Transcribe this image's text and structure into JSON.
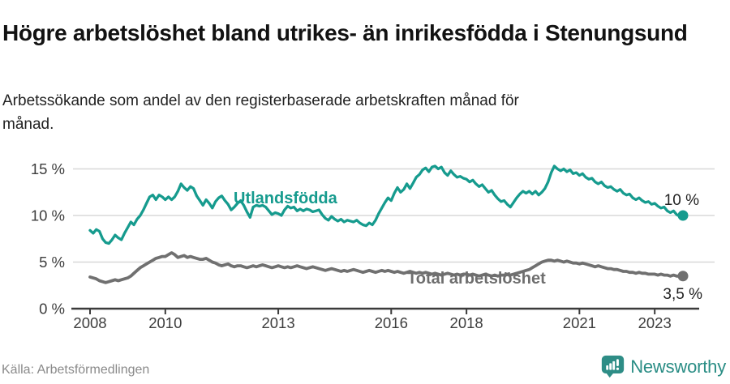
{
  "header": {
    "title": "Högre arbetslöshet bland utrikes- än inrikesfödda i Stenungsund",
    "subtitle": "Arbetssökande som andel av den registerbaserade arbetskraften månad för månad."
  },
  "footer": {
    "source": "Källa: Arbetsförmedlingen",
    "brand": "Newsworthy"
  },
  "colors": {
    "accent_teal": "#169B8E",
    "line_gray": "#707070",
    "label_gray": "#6E6E6E",
    "end_label_text": "#222222",
    "grid": "#D8D8D8",
    "axis": "#3B3B3B",
    "tick_text": "#3D3D3D",
    "source_text": "#8A8A8A",
    "logo_teal": "#2E8D86"
  },
  "icons": {
    "logo": "newsworthy-speech-bubble-bar-chart-icon"
  },
  "chart_data": {
    "type": "line",
    "title": "Högre arbetslöshet bland utrikes- än inrikesfödda i Stenungsund",
    "subtitle": "Arbetssökande som andel av den registerbaserade arbetskraften månad för månad.",
    "frequency": "monthly",
    "x_start": "2008-01",
    "x_end": "2023-10",
    "xlabel": "",
    "ylabel": "",
    "ylim": [
      0,
      16.5
    ],
    "grid": "horizontal",
    "legend_position": "inline-labels",
    "x_tick_years": [
      2008,
      2010,
      2013,
      2016,
      2018,
      2021,
      2023
    ],
    "x_tick_labels": [
      "2008",
      "2010",
      "2013",
      "2016",
      "2018",
      "2021",
      "2023"
    ],
    "y_tick_values": [
      0,
      5,
      10,
      15
    ],
    "y_tick_labels": [
      "0 %",
      "5 %",
      "10 %",
      "15 %"
    ],
    "series": [
      {
        "name": "Utlandsfödda",
        "color": "#169B8E",
        "end_label": "10 %",
        "end_value": 10.0,
        "values": [
          8.4,
          8.1,
          8.5,
          8.3,
          7.5,
          7.1,
          7.0,
          7.4,
          7.9,
          7.6,
          7.4,
          8.1,
          8.7,
          9.3,
          9.0,
          9.6,
          10.0,
          10.6,
          11.3,
          12.0,
          12.2,
          11.7,
          12.2,
          12.0,
          11.7,
          12.0,
          11.7,
          12.0,
          12.6,
          13.4,
          13.0,
          12.7,
          13.1,
          12.9,
          12.1,
          11.6,
          11.1,
          11.7,
          11.3,
          10.8,
          11.5,
          11.9,
          12.1,
          11.6,
          11.2,
          10.6,
          10.9,
          11.3,
          11.6,
          11.1,
          10.4,
          9.8,
          10.9,
          11.1,
          11.0,
          11.1,
          10.9,
          10.5,
          10.1,
          10.3,
          10.2,
          10.0,
          10.6,
          11.0,
          10.8,
          10.9,
          10.5,
          10.7,
          10.5,
          10.7,
          10.6,
          10.4,
          10.5,
          10.6,
          10.1,
          9.7,
          9.5,
          9.9,
          9.6,
          9.4,
          9.6,
          9.3,
          9.5,
          9.4,
          9.3,
          9.5,
          9.2,
          9.0,
          8.9,
          9.2,
          9.0,
          9.5,
          10.2,
          10.8,
          11.4,
          11.9,
          11.6,
          12.4,
          13.0,
          12.5,
          12.8,
          13.4,
          12.9,
          13.5,
          14.1,
          14.4,
          14.9,
          15.1,
          14.7,
          15.2,
          15.3,
          15.0,
          15.2,
          14.6,
          14.3,
          14.8,
          14.4,
          14.1,
          14.2,
          14.0,
          13.9,
          13.6,
          13.8,
          13.4,
          13.1,
          13.3,
          12.9,
          12.5,
          12.7,
          12.2,
          11.8,
          11.5,
          11.6,
          11.2,
          10.9,
          11.4,
          11.9,
          12.3,
          12.6,
          12.4,
          12.6,
          12.3,
          12.6,
          12.2,
          12.5,
          12.9,
          13.6,
          14.6,
          15.3,
          15.0,
          14.8,
          15.0,
          14.7,
          14.9,
          14.5,
          14.6,
          14.3,
          14.5,
          14.1,
          13.9,
          14.0,
          13.6,
          13.4,
          13.6,
          13.2,
          13.0,
          13.1,
          12.8,
          12.6,
          12.8,
          12.4,
          12.2,
          12.3,
          11.9,
          11.7,
          11.9,
          11.6,
          11.4,
          11.5,
          11.2,
          11.3,
          11.0,
          10.8,
          10.9,
          10.5,
          10.3,
          10.5,
          10.1,
          9.9,
          10.0
        ]
      },
      {
        "name": "Total arbetslöshet",
        "color": "#707070",
        "end_label": "3,5 %",
        "end_value": 3.5,
        "values": [
          3.4,
          3.3,
          3.2,
          3.0,
          2.9,
          2.8,
          2.9,
          3.0,
          3.1,
          3.0,
          3.1,
          3.2,
          3.3,
          3.5,
          3.8,
          4.1,
          4.4,
          4.6,
          4.8,
          5.0,
          5.2,
          5.4,
          5.5,
          5.6,
          5.6,
          5.8,
          6.0,
          5.8,
          5.5,
          5.6,
          5.7,
          5.5,
          5.6,
          5.5,
          5.4,
          5.3,
          5.3,
          5.4,
          5.2,
          5.0,
          4.9,
          4.7,
          4.6,
          4.7,
          4.8,
          4.6,
          4.5,
          4.6,
          4.6,
          4.5,
          4.4,
          4.5,
          4.6,
          4.5,
          4.6,
          4.7,
          4.6,
          4.5,
          4.4,
          4.5,
          4.6,
          4.5,
          4.4,
          4.5,
          4.4,
          4.5,
          4.6,
          4.5,
          4.4,
          4.3,
          4.4,
          4.5,
          4.4,
          4.3,
          4.2,
          4.1,
          4.2,
          4.3,
          4.2,
          4.1,
          4.0,
          4.1,
          4.0,
          4.1,
          4.2,
          4.1,
          4.0,
          3.9,
          4.0,
          4.1,
          4.0,
          3.9,
          4.0,
          4.1,
          4.0,
          4.1,
          4.0,
          3.9,
          4.0,
          3.9,
          3.8,
          3.9,
          4.0,
          3.9,
          3.8,
          3.9,
          3.8,
          3.9,
          3.8,
          3.7,
          3.8,
          3.7,
          3.6,
          3.7,
          3.8,
          3.7,
          3.6,
          3.7,
          3.6,
          3.7,
          3.7,
          3.6,
          3.7,
          3.6,
          3.5,
          3.6,
          3.7,
          3.6,
          3.5,
          3.6,
          3.5,
          3.6,
          3.6,
          3.7,
          3.6,
          3.7,
          3.8,
          3.9,
          4.0,
          4.1,
          4.2,
          4.4,
          4.6,
          4.8,
          5.0,
          5.1,
          5.2,
          5.2,
          5.1,
          5.2,
          5.1,
          5.0,
          5.1,
          5.0,
          4.9,
          4.9,
          4.8,
          4.9,
          4.8,
          4.7,
          4.6,
          4.5,
          4.6,
          4.5,
          4.4,
          4.3,
          4.3,
          4.2,
          4.2,
          4.1,
          4.0,
          4.0,
          3.9,
          3.9,
          3.8,
          3.9,
          3.8,
          3.8,
          3.7,
          3.7,
          3.7,
          3.6,
          3.7,
          3.6,
          3.6,
          3.5,
          3.6,
          3.5,
          3.5,
          3.5
        ]
      }
    ]
  }
}
